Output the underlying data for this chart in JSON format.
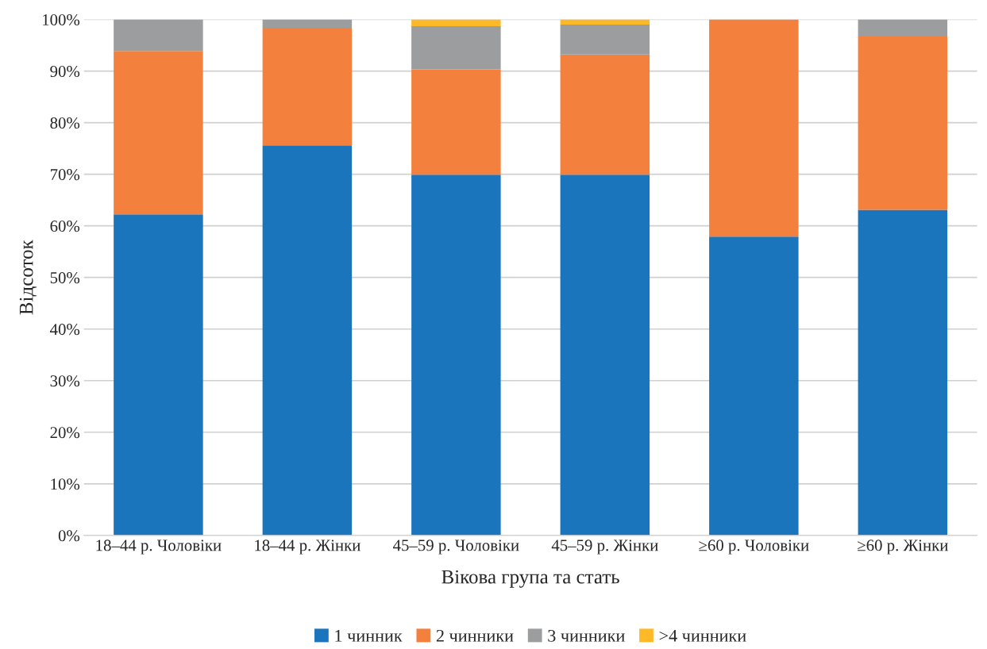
{
  "chart_data": {
    "type": "bar",
    "stacked": true,
    "xlabel": "Вікова група та стать",
    "ylabel": "Відсоток",
    "categories": [
      "18–44 р. Чоловіки",
      "18–44 р. Жінки",
      "45–59 р. Чоловіки",
      "45–59 р. Жінки",
      "≥60 р. Чоловіки",
      "≥60 р. Жінки"
    ],
    "series": [
      {
        "name": "1 чинник",
        "color": "#1b75bc",
        "values": [
          62.2,
          75.6,
          69.9,
          69.9,
          57.9,
          63.1
        ]
      },
      {
        "name": "2 чинники",
        "color": "#f3803d",
        "values": [
          31.7,
          22.8,
          20.4,
          23.3,
          42.1,
          33.6
        ]
      },
      {
        "name": "3 чинники",
        "color": "#9c9d9f",
        "values": [
          6.1,
          1.6,
          8.4,
          5.8,
          null,
          3.3
        ]
      },
      {
        "name": ">4 чинники",
        "color": "#fdb927",
        "values": [
          null,
          null,
          1.3,
          1.0,
          null,
          null
        ]
      }
    ],
    "ylim": [
      0,
      100
    ],
    "yticks": [
      {
        "value": 0,
        "label": "0%"
      },
      {
        "value": 10,
        "label": "10%"
      },
      {
        "value": 20,
        "label": "20%"
      },
      {
        "value": 30,
        "label": "30%"
      },
      {
        "value": 40,
        "label": "40%"
      },
      {
        "value": 50,
        "label": "50%"
      },
      {
        "value": 60,
        "label": "60%"
      },
      {
        "value": 70,
        "label": "70%"
      },
      {
        "value": 80,
        "label": "80%"
      },
      {
        "value": 90,
        "label": "90%"
      },
      {
        "value": 100,
        "label": "100%"
      }
    ],
    "grid": "y",
    "legend": "bottom"
  }
}
